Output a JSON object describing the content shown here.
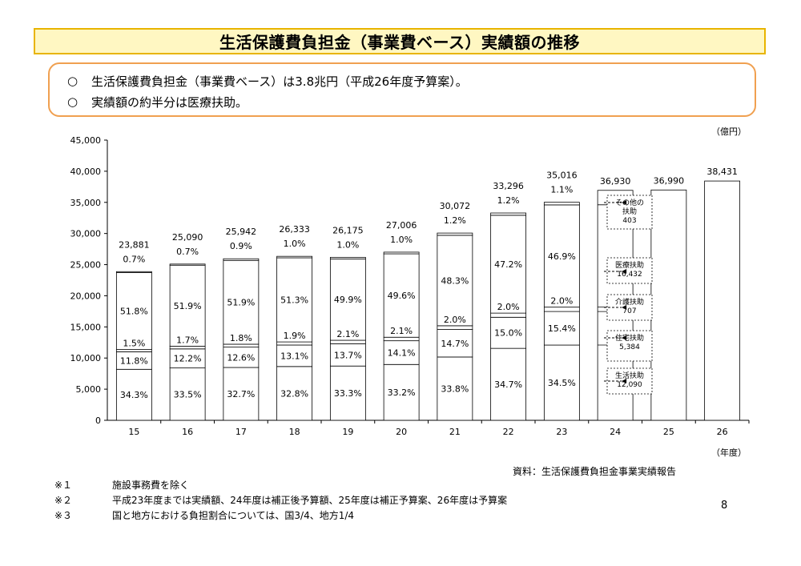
{
  "title": "生活保護費負担金（事業費ベース）実績額の推移",
  "summary": [
    {
      "mark": "○",
      "text": "生活保護費負担金（事業費ベース）は3.8兆円（平成26年度予算案）。"
    },
    {
      "mark": "○",
      "text": "実績額の約半分は医療扶助。"
    }
  ],
  "unit_top": "（億円）",
  "unit_bottom": "（年度）",
  "source": "資料：生活保護費負担金事業実績報告",
  "notes": [
    {
      "mark": "※１",
      "text": "施設事務費を除く"
    },
    {
      "mark": "※２",
      "text": "平成23年度までは実績額、24年度は補正後予算額、25年度は補正予算案、26年度は予算案"
    },
    {
      "mark": "※３",
      "text": "国と地方における負担割合については、国3/4、地方1/4"
    }
  ],
  "page_number": "8",
  "chart_data": {
    "type": "bar",
    "stacked": true,
    "ylim": [
      0,
      45000
    ],
    "yticks": [
      "0",
      "5,000",
      "10,000",
      "15,000",
      "20,000",
      "25,000",
      "30,000",
      "35,000",
      "40,000",
      "45,000"
    ],
    "categories": [
      "15",
      "16",
      "17",
      "18",
      "19",
      "20",
      "21",
      "22",
      "23",
      "24",
      "25",
      "26"
    ],
    "totals": [
      23881,
      25090,
      25942,
      26333,
      26175,
      27006,
      30072,
      33296,
      35016,
      36930,
      36990,
      38431
    ],
    "total_labels": [
      "23,881",
      "25,090",
      "25,942",
      "26,333",
      "26,175",
      "27,006",
      "30,072",
      "33,296",
      "35,016",
      "36,930",
      "36,990",
      "38,431"
    ],
    "share_labels": [
      [
        "34.3%",
        "11.8%",
        "1.5%",
        "51.8%",
        "0.7%"
      ],
      [
        "33.5%",
        "12.2%",
        "1.7%",
        "51.9%",
        "0.7%"
      ],
      [
        "32.7%",
        "12.6%",
        "1.8%",
        "51.9%",
        "0.9%"
      ],
      [
        "32.8%",
        "13.1%",
        "1.9%",
        "51.3%",
        "1.0%"
      ],
      [
        "33.3%",
        "13.7%",
        "2.1%",
        "49.9%",
        "1.0%"
      ],
      [
        "33.2%",
        "14.1%",
        "2.1%",
        "49.6%",
        "1.0%"
      ],
      [
        "33.8%",
        "14.7%",
        "2.0%",
        "48.3%",
        "1.2%"
      ],
      [
        "34.7%",
        "15.0%",
        "2.0%",
        "47.2%",
        "1.2%"
      ],
      [
        "34.5%",
        "15.4%",
        "2.0%",
        "46.9%",
        "1.1%"
      ],
      [],
      [],
      []
    ],
    "shares": [
      [
        34.3,
        11.8,
        1.5,
        51.8,
        0.7
      ],
      [
        33.5,
        12.2,
        1.7,
        51.9,
        0.7
      ],
      [
        32.7,
        12.6,
        1.8,
        51.9,
        0.9
      ],
      [
        32.8,
        13.1,
        1.9,
        51.3,
        1.0
      ],
      [
        33.3,
        13.7,
        2.1,
        49.9,
        1.0
      ],
      [
        33.2,
        14.1,
        2.1,
        49.6,
        1.0
      ],
      [
        33.8,
        14.7,
        2.0,
        48.3,
        1.2
      ],
      [
        34.7,
        15.0,
        2.0,
        47.2,
        1.2
      ],
      [
        34.5,
        15.4,
        2.0,
        46.9,
        1.1
      ],
      [],
      [],
      []
    ],
    "fy24_breakdown": [
      {
        "name": "生活扶助",
        "value": 12090,
        "label": "12,090"
      },
      {
        "name": "住宅扶助",
        "value": 5384,
        "label": "5,384"
      },
      {
        "name": "介護扶助",
        "value": 707,
        "label": "707"
      },
      {
        "name": "医療扶助",
        "value": 16432,
        "label": "16,432"
      },
      {
        "name": "その他の扶助",
        "value": 403,
        "label": "403"
      }
    ],
    "grid": false
  }
}
